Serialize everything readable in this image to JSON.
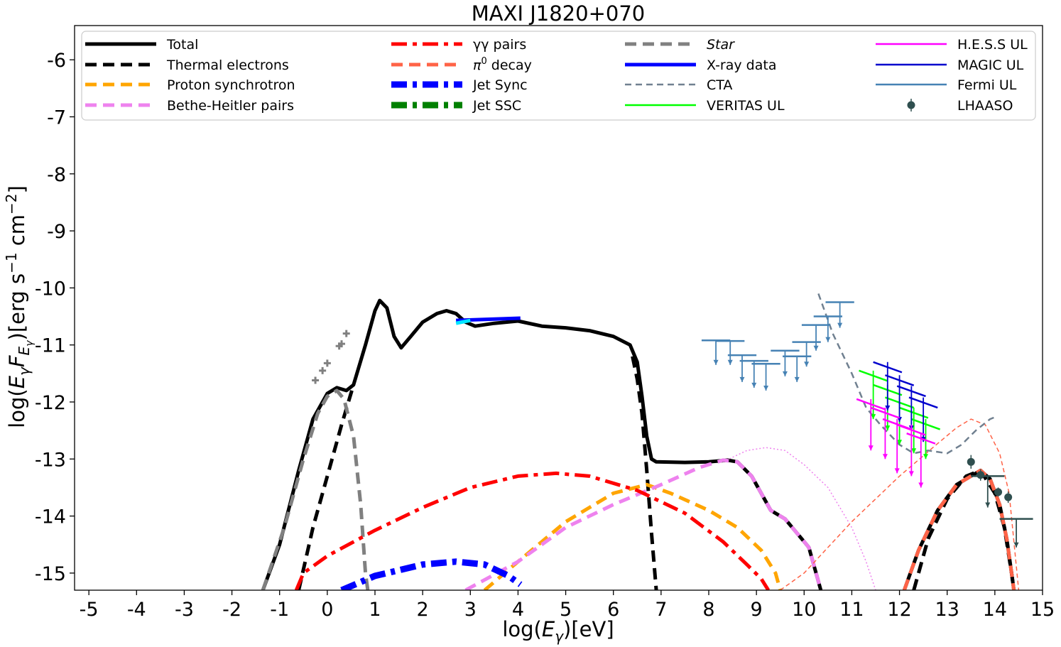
{
  "chart_data": {
    "type": "line",
    "title": "MAXI J1820+070",
    "xlabel": "log(E_γ)[eV]",
    "ylabel": "log(E_γ F_{E_γ})[erg s^-1 cm^-2]",
    "xlim": [
      -5.3,
      15
    ],
    "ylim": [
      -15.3,
      -5.4
    ],
    "x_ticks": [
      -5,
      -4,
      -3,
      -2,
      -1,
      0,
      1,
      2,
      3,
      4,
      5,
      6,
      7,
      8,
      9,
      10,
      11,
      12,
      13,
      14,
      15
    ],
    "y_ticks": [
      -15,
      -14,
      -13,
      -12,
      -11,
      -10,
      -9,
      -8,
      -7,
      -6
    ],
    "colors": {
      "total": "#000000",
      "thermal": "#000000",
      "proton_sync": "#ffa500",
      "bethe_heitler": "#ee82ee",
      "gg_pairs": "#ff0000",
      "pi0": "#ff6347",
      "jet_sync": "#0000ff",
      "jet_ssc": "#008000",
      "star": "#808080",
      "xray": "#0000ff",
      "xray_alt": "#00e5ff",
      "cta": "#708090",
      "veritas": "#00ff00",
      "hess": "#ff00ff",
      "magic": "#0000cd",
      "fermi": "#4682b4",
      "lhaaso": "#2f4f4f"
    },
    "legend": [
      {
        "label": "Total",
        "key": "total",
        "style": "solid"
      },
      {
        "label": "Thermal electrons",
        "key": "thermal",
        "style": "dashed"
      },
      {
        "label": "Proton synchrotron",
        "key": "proton_sync",
        "style": "dashed"
      },
      {
        "label": "Bethe-Heitler pairs",
        "key": "bethe_heitler",
        "style": "dashed"
      },
      {
        "label": "γγ pairs",
        "key": "gg_pairs",
        "style": "dashdot"
      },
      {
        "label": "decay",
        "prefix": "π",
        "sup": "0",
        "key": "pi0",
        "style": "dashed"
      },
      {
        "label": "Jet Sync",
        "key": "jet_sync",
        "style": "dashdotthick"
      },
      {
        "label": "Jet SSC",
        "key": "jet_ssc",
        "style": "dashdotthick"
      },
      {
        "label": "Star",
        "key": "star",
        "style": "dashed",
        "italic": true
      },
      {
        "label": "X-ray data",
        "key": "xray",
        "style": "solid"
      },
      {
        "label": "CTA",
        "key": "cta",
        "style": "thindash"
      },
      {
        "label": "VERITAS UL",
        "key": "veritas",
        "style": "thin"
      },
      {
        "label": "H.E.S.S UL",
        "key": "hess",
        "style": "thin"
      },
      {
        "label": "MAGIC UL",
        "key": "magic",
        "style": "thin"
      },
      {
        "label": "Fermi UL",
        "key": "fermi",
        "style": "thin"
      },
      {
        "label": "LHAASO",
        "key": "lhaaso",
        "style": "marker"
      }
    ],
    "series": [
      {
        "name": "Total",
        "key": "total",
        "dash": "",
        "width": 5,
        "points": [
          [
            -1.35,
            -15.3
          ],
          [
            -1.0,
            -14.5
          ],
          [
            -0.6,
            -13.2
          ],
          [
            -0.3,
            -12.3
          ],
          [
            0.0,
            -11.85
          ],
          [
            0.2,
            -11.75
          ],
          [
            0.4,
            -11.8
          ],
          [
            0.55,
            -11.7
          ],
          [
            0.8,
            -11.0
          ],
          [
            1.0,
            -10.4
          ],
          [
            1.1,
            -10.22
          ],
          [
            1.25,
            -10.35
          ],
          [
            1.4,
            -10.85
          ],
          [
            1.55,
            -11.05
          ],
          [
            1.75,
            -10.85
          ],
          [
            2.0,
            -10.6
          ],
          [
            2.3,
            -10.45
          ],
          [
            2.5,
            -10.4
          ],
          [
            2.7,
            -10.45
          ],
          [
            2.9,
            -10.6
          ],
          [
            3.1,
            -10.67
          ],
          [
            3.5,
            -10.62
          ],
          [
            4.0,
            -10.58
          ],
          [
            4.5,
            -10.67
          ],
          [
            5.0,
            -10.7
          ],
          [
            5.5,
            -10.75
          ],
          [
            6.0,
            -10.85
          ],
          [
            6.35,
            -11.0
          ],
          [
            6.5,
            -11.3
          ],
          [
            6.6,
            -11.9
          ],
          [
            6.7,
            -12.6
          ],
          [
            6.8,
            -13.0
          ],
          [
            6.9,
            -13.05
          ],
          [
            7.5,
            -13.06
          ],
          [
            8.0,
            -13.05
          ],
          [
            8.4,
            -13.02
          ],
          [
            8.6,
            -13.05
          ],
          [
            8.9,
            -13.3
          ],
          [
            9.3,
            -13.9
          ],
          [
            9.6,
            -14.05
          ],
          [
            9.8,
            -14.25
          ],
          [
            10.0,
            -14.45
          ],
          [
            10.1,
            -14.55
          ],
          [
            10.25,
            -15.0
          ],
          [
            10.35,
            -15.3
          ]
        ]
      },
      {
        "name": "Total (VHE)",
        "key": "total",
        "dash": "",
        "width": 5,
        "points": [
          [
            12.1,
            -15.3
          ],
          [
            12.4,
            -14.6
          ],
          [
            12.8,
            -13.9
          ],
          [
            13.2,
            -13.45
          ],
          [
            13.5,
            -13.3
          ],
          [
            13.7,
            -13.2
          ],
          [
            13.9,
            -13.35
          ],
          [
            14.1,
            -13.8
          ],
          [
            14.25,
            -14.4
          ],
          [
            14.35,
            -15.0
          ],
          [
            14.4,
            -15.3
          ]
        ]
      },
      {
        "name": "Thermal electrons",
        "key": "thermal",
        "dash": "16,9",
        "width": 5,
        "points": [
          [
            -0.6,
            -15.3
          ],
          [
            -0.3,
            -14.2
          ],
          [
            0.0,
            -13.3
          ],
          [
            0.3,
            -12.4
          ],
          [
            0.55,
            -11.7
          ]
        ]
      },
      {
        "name": "Thermal electrons (2)",
        "key": "thermal",
        "dash": "16,9",
        "width": 5,
        "points": [
          [
            6.4,
            -11.2
          ],
          [
            6.5,
            -11.6
          ],
          [
            6.6,
            -12.2
          ],
          [
            6.7,
            -13.2
          ],
          [
            6.8,
            -14.3
          ],
          [
            6.9,
            -15.3
          ]
        ]
      },
      {
        "name": "Thermal electrons (3)",
        "key": "thermal",
        "dash": "16,9",
        "width": 5,
        "points": [
          [
            12.3,
            -15.3
          ],
          [
            12.6,
            -14.4
          ],
          [
            13.0,
            -13.7
          ],
          [
            13.4,
            -13.3
          ],
          [
            13.7,
            -13.2
          ],
          [
            14.0,
            -13.6
          ],
          [
            14.2,
            -14.2
          ],
          [
            14.35,
            -15.0
          ],
          [
            14.4,
            -15.3
          ]
        ]
      },
      {
        "name": "Star",
        "key": "star",
        "dash": "16,9",
        "width": 5,
        "points": [
          [
            -1.35,
            -15.3
          ],
          [
            -0.9,
            -14.2
          ],
          [
            -0.5,
            -13.0
          ],
          [
            -0.2,
            -12.2
          ],
          [
            0.0,
            -11.9
          ],
          [
            0.2,
            -11.8
          ],
          [
            0.35,
            -11.95
          ],
          [
            0.55,
            -12.6
          ],
          [
            0.7,
            -13.8
          ],
          [
            0.8,
            -15.0
          ],
          [
            0.85,
            -15.3
          ]
        ]
      },
      {
        "name": "Proton synchrotron",
        "key": "proton_sync",
        "dash": "16,9",
        "width": 5,
        "points": [
          [
            3.3,
            -15.3
          ],
          [
            4.0,
            -14.8
          ],
          [
            5.0,
            -14.1
          ],
          [
            6.0,
            -13.6
          ],
          [
            6.7,
            -13.45
          ],
          [
            7.2,
            -13.6
          ],
          [
            8.0,
            -13.9
          ],
          [
            8.6,
            -14.2
          ],
          [
            9.1,
            -14.6
          ],
          [
            9.4,
            -15.0
          ],
          [
            9.5,
            -15.3
          ]
        ]
      },
      {
        "name": "Bethe-Heitler pairs",
        "key": "bethe_heitler",
        "dash": "16,9",
        "width": 5,
        "points": [
          [
            2.9,
            -15.3
          ],
          [
            4.0,
            -14.8
          ],
          [
            5.0,
            -14.2
          ],
          [
            6.0,
            -13.8
          ],
          [
            7.0,
            -13.45
          ],
          [
            7.8,
            -13.15
          ],
          [
            8.3,
            -13.02
          ],
          [
            8.6,
            -13.05
          ],
          [
            8.9,
            -13.3
          ],
          [
            9.3,
            -13.9
          ],
          [
            9.6,
            -14.05
          ],
          [
            9.8,
            -14.25
          ],
          [
            10.0,
            -14.45
          ],
          [
            10.1,
            -14.55
          ],
          [
            10.25,
            -15.0
          ],
          [
            10.35,
            -15.3
          ]
        ]
      },
      {
        "name": "Bethe-Heitler pairs (thin)",
        "key": "bethe_heitler",
        "dash": "2,3",
        "width": 1.5,
        "points": [
          [
            8.3,
            -13.05
          ],
          [
            8.8,
            -12.85
          ],
          [
            9.2,
            -12.8
          ],
          [
            9.6,
            -12.85
          ],
          [
            10.0,
            -13.1
          ],
          [
            10.5,
            -13.5
          ],
          [
            11.0,
            -14.2
          ],
          [
            11.3,
            -14.8
          ],
          [
            11.5,
            -15.3
          ]
        ]
      },
      {
        "name": "γγ pairs",
        "key": "gg_pairs",
        "dash": "22,8,6,8",
        "width": 5,
        "points": [
          [
            -0.65,
            -15.3
          ],
          [
            -0.5,
            -15.0
          ],
          [
            0.0,
            -14.7
          ],
          [
            1.0,
            -14.25
          ],
          [
            2.0,
            -13.85
          ],
          [
            3.0,
            -13.5
          ],
          [
            4.0,
            -13.3
          ],
          [
            4.8,
            -13.25
          ],
          [
            5.5,
            -13.3
          ],
          [
            6.5,
            -13.55
          ],
          [
            7.5,
            -13.95
          ],
          [
            8.3,
            -14.45
          ],
          [
            8.8,
            -14.85
          ],
          [
            9.1,
            -15.1
          ],
          [
            9.25,
            -15.3
          ]
        ]
      },
      {
        "name": "π0 decay",
        "key": "pi0",
        "dash": "16,9",
        "width": 5,
        "points": [
          [
            12.1,
            -15.3
          ],
          [
            12.4,
            -14.6
          ],
          [
            12.8,
            -13.9
          ],
          [
            13.2,
            -13.45
          ],
          [
            13.5,
            -13.3
          ],
          [
            13.7,
            -13.2
          ],
          [
            13.9,
            -13.35
          ],
          [
            14.1,
            -13.8
          ],
          [
            14.25,
            -14.4
          ],
          [
            14.35,
            -15.0
          ],
          [
            14.4,
            -15.3
          ]
        ]
      },
      {
        "name": "π0 decay (thin)",
        "key": "pi0",
        "dash": "6,4",
        "width": 1.5,
        "points": [
          [
            9.5,
            -15.3
          ],
          [
            10.0,
            -15.0
          ],
          [
            11.0,
            -14.1
          ],
          [
            12.0,
            -13.3
          ],
          [
            12.7,
            -12.8
          ],
          [
            13.2,
            -12.45
          ],
          [
            13.5,
            -12.3
          ],
          [
            13.8,
            -12.4
          ],
          [
            14.1,
            -12.9
          ],
          [
            14.3,
            -13.6
          ],
          [
            14.5,
            -15.3
          ]
        ]
      },
      {
        "name": "Jet Sync",
        "key": "jet_sync",
        "dash": "22,8,6,8",
        "width": 9,
        "points": [
          [
            0.3,
            -15.3
          ],
          [
            1.0,
            -15.05
          ],
          [
            2.0,
            -14.85
          ],
          [
            2.7,
            -14.8
          ],
          [
            3.3,
            -14.85
          ],
          [
            3.8,
            -15.05
          ],
          [
            4.05,
            -15.2
          ]
        ]
      },
      {
        "name": "CTA",
        "key": "cta",
        "dash": "9,6",
        "width": 2.5,
        "points": [
          [
            10.3,
            -10.1
          ],
          [
            10.6,
            -10.8
          ],
          [
            11.0,
            -11.5
          ],
          [
            11.3,
            -12.1
          ],
          [
            11.6,
            -12.4
          ],
          [
            12.0,
            -12.75
          ],
          [
            12.3,
            -12.9
          ],
          [
            12.6,
            -12.85
          ],
          [
            13.0,
            -12.9
          ],
          [
            13.3,
            -12.75
          ],
          [
            13.6,
            -12.5
          ],
          [
            13.9,
            -12.3
          ],
          [
            14.05,
            -12.25
          ]
        ]
      }
    ],
    "xray_segments": [
      {
        "key": "xray",
        "points": [
          [
            2.7,
            -10.57
          ],
          [
            4.05,
            -10.53
          ]
        ]
      },
      {
        "key": "xray_alt",
        "points": [
          [
            2.7,
            -10.62
          ],
          [
            3.0,
            -10.57
          ]
        ]
      }
    ],
    "star_points": [
      [
        -0.25,
        -11.62
      ],
      [
        -0.1,
        -11.45
      ],
      [
        0.0,
        -11.32
      ],
      [
        0.25,
        -11.02
      ],
      [
        0.3,
        -10.98
      ],
      [
        0.4,
        -10.8
      ]
    ],
    "upper_limits": [
      {
        "key": "fermi",
        "items": [
          [
            8.15,
            -10.92,
            0.3,
            -11.35
          ],
          [
            8.45,
            -10.93,
            0.3,
            -11.35
          ],
          [
            8.7,
            -11.18,
            0.3,
            -11.65
          ],
          [
            8.95,
            -11.28,
            0.3,
            -11.75
          ],
          [
            9.2,
            -11.33,
            0.3,
            -11.8
          ],
          [
            9.6,
            -11.1,
            0.3,
            -11.55
          ],
          [
            9.85,
            -11.2,
            0.3,
            -11.65
          ],
          [
            10.05,
            -10.95,
            0.3,
            -11.38
          ],
          [
            10.25,
            -10.65,
            0.3,
            -11.1
          ],
          [
            10.5,
            -10.5,
            0.3,
            -10.95
          ],
          [
            10.75,
            -10.25,
            0.3,
            -10.7
          ]
        ]
      },
      {
        "key": "veritas",
        "items": [
          [
            11.45,
            -11.45,
            0.3,
            -12.3
          ],
          [
            11.75,
            -11.7,
            0.3,
            -12.5
          ],
          [
            12.0,
            -11.92,
            0.3,
            -12.75
          ],
          [
            12.3,
            -12.1,
            0.3,
            -12.9
          ],
          [
            12.55,
            -12.3,
            0.3,
            -13.0
          ]
        ]
      },
      {
        "key": "magic",
        "items": [
          [
            11.75,
            -11.3,
            0.3,
            -12.15
          ],
          [
            12.0,
            -11.53,
            0.3,
            -12.35
          ],
          [
            12.25,
            -11.72,
            0.3,
            -12.5
          ],
          [
            12.5,
            -11.92,
            0.3,
            -12.7
          ]
        ]
      },
      {
        "key": "hess",
        "items": [
          [
            11.4,
            -11.95,
            0.3,
            -12.85
          ],
          [
            11.7,
            -12.1,
            0.3,
            -13.0
          ],
          [
            11.95,
            -12.3,
            0.3,
            -13.25
          ],
          [
            12.25,
            -12.4,
            0.3,
            -13.3
          ],
          [
            12.45,
            -12.55,
            0.3,
            -13.5
          ]
        ]
      },
      {
        "key": "lhaaso",
        "items": [
          [
            13.85,
            -13.3,
            0.35,
            -13.85
          ],
          [
            14.45,
            -14.05,
            0.35,
            -14.55
          ]
        ]
      }
    ],
    "lhaaso_points": [
      [
        13.5,
        -13.05,
        0.12
      ],
      [
        13.7,
        -13.28,
        0.1
      ],
      [
        14.07,
        -13.58,
        0.08
      ],
      [
        14.28,
        -13.67,
        0.1
      ]
    ]
  }
}
